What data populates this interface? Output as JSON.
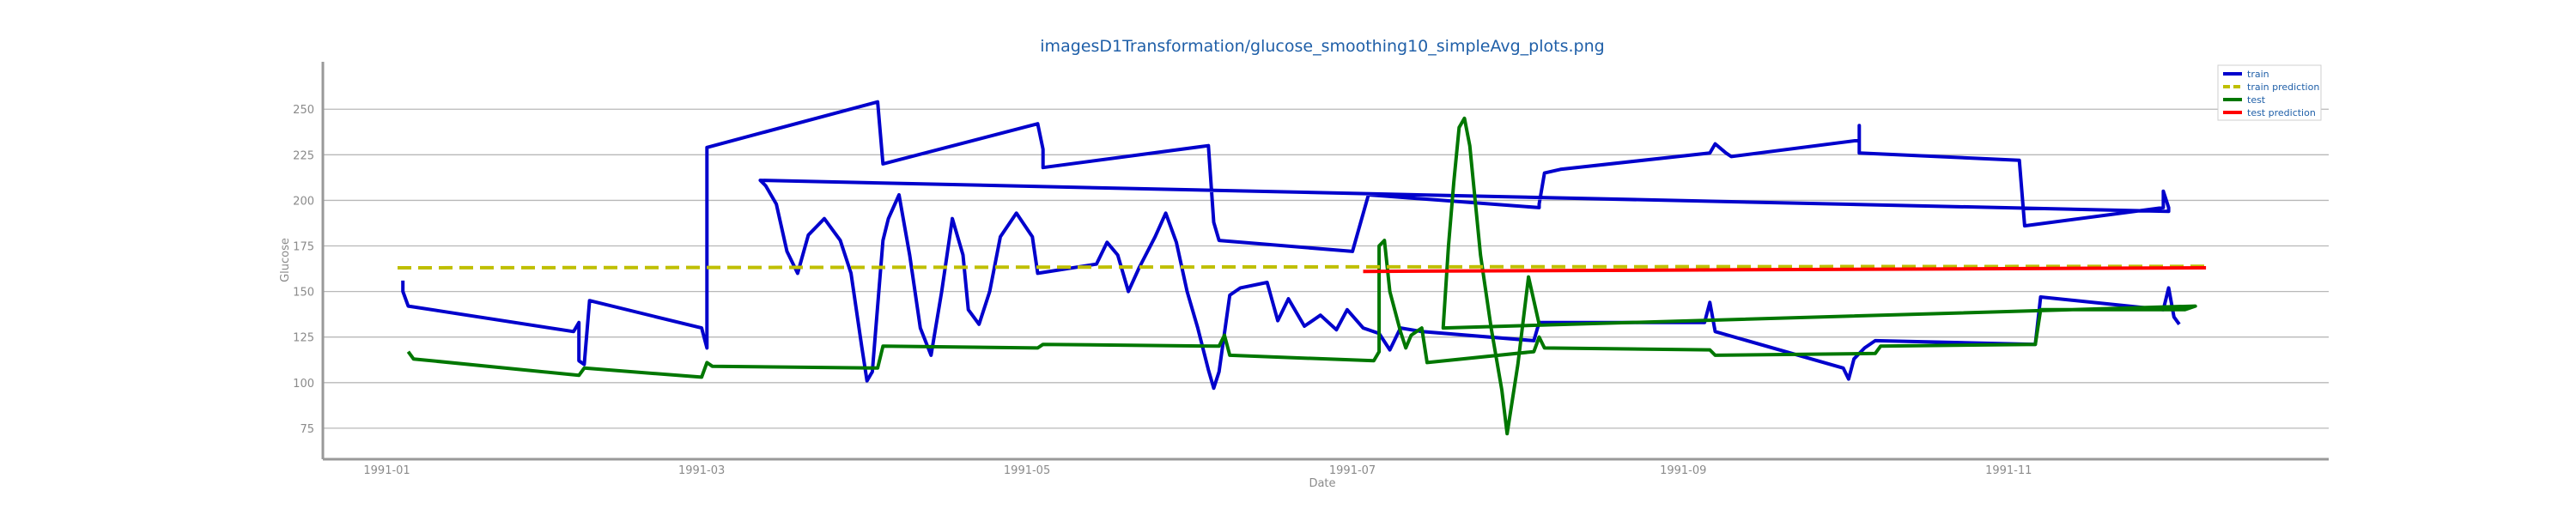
{
  "chart_data": {
    "type": "line",
    "title": "imagesD1Transformation/glucose_smoothing10_simpleAvg_plots.png",
    "xlabel": "Date",
    "ylabel": "Glucose",
    "x_ticks": [
      "1991-01",
      "1991-03",
      "1991-05",
      "1991-07",
      "1991-09",
      "1991-11"
    ],
    "y_ticks": [
      75,
      100,
      125,
      150,
      175,
      200,
      225,
      250
    ],
    "xlim": [
      "1990-12-20",
      "1991-12-31"
    ],
    "ylim": [
      58,
      276
    ],
    "grid": "horizontal",
    "legend_position": "top-right",
    "series": [
      {
        "name": "train",
        "color": "#0000cc",
        "points": [
          [
            "1991-01-04",
            156
          ],
          [
            "1991-01-04",
            150
          ],
          [
            "1991-01-05",
            142
          ],
          [
            "1991-02-05",
            128
          ],
          [
            "1991-02-06",
            133
          ],
          [
            "1991-02-06",
            112
          ],
          [
            "1991-02-07",
            110
          ],
          [
            "1991-02-08",
            145
          ],
          [
            "1991-03-01",
            130
          ],
          [
            "1991-03-02",
            119
          ],
          [
            "1991-03-02",
            208
          ],
          [
            "1991-03-02",
            229
          ],
          [
            "1991-04-03",
            254
          ],
          [
            "1991-04-04",
            220
          ],
          [
            "1991-05-03",
            242
          ],
          [
            "1991-05-04",
            228
          ],
          [
            "1991-05-04",
            218
          ],
          [
            "1991-06-04",
            230
          ],
          [
            "1991-06-05",
            188
          ],
          [
            "1991-06-06",
            178
          ],
          [
            "1991-07-01",
            172
          ],
          [
            "1991-07-04",
            203
          ],
          [
            "1991-08-05",
            196
          ],
          [
            "1991-08-05",
            198
          ],
          [
            "1991-08-06",
            215
          ],
          [
            "1991-08-09",
            217
          ],
          [
            "1991-09-06",
            226
          ],
          [
            "1991-09-07",
            231
          ],
          [
            "1991-09-09",
            226
          ],
          [
            "1991-09-10",
            224
          ],
          [
            "1991-10-04",
            233
          ],
          [
            "1991-10-04",
            241
          ],
          [
            "1991-10-04",
            226
          ],
          [
            "1991-11-03",
            222
          ],
          [
            "1991-11-04",
            186
          ],
          [
            "1991-11-30",
            196
          ],
          [
            "1991-11-30",
            205
          ],
          [
            "1991-12-01",
            196
          ],
          [
            "1991-12-01",
            194
          ],
          [
            "1991-03-12",
            211
          ],
          [
            "1991-03-13",
            208
          ],
          [
            "1991-03-15",
            198
          ],
          [
            "1991-03-17",
            172
          ],
          [
            "1991-03-19",
            160
          ],
          [
            "1991-03-21",
            181
          ],
          [
            "1991-03-24",
            190
          ],
          [
            "1991-03-27",
            178
          ],
          [
            "1991-03-29",
            160
          ],
          [
            "1991-03-31",
            120
          ],
          [
            "1991-04-01",
            101
          ],
          [
            "1991-04-02",
            106
          ],
          [
            "1991-04-04",
            178
          ],
          [
            "1991-04-05",
            190
          ],
          [
            "1991-04-07",
            203
          ],
          [
            "1991-04-09",
            170
          ],
          [
            "1991-04-11",
            130
          ],
          [
            "1991-04-13",
            115
          ],
          [
            "1991-04-15",
            150
          ],
          [
            "1991-04-17",
            190
          ],
          [
            "1991-04-19",
            170
          ],
          [
            "1991-04-20",
            140
          ],
          [
            "1991-04-22",
            132
          ],
          [
            "1991-04-24",
            150
          ],
          [
            "1991-04-26",
            180
          ],
          [
            "1991-04-29",
            193
          ],
          [
            "1991-05-02",
            180
          ],
          [
            "1991-05-03",
            160
          ],
          [
            "1991-05-14",
            165
          ],
          [
            "1991-05-16",
            177
          ],
          [
            "1991-05-18",
            170
          ],
          [
            "1991-05-20",
            150
          ],
          [
            "1991-05-22",
            163
          ],
          [
            "1991-05-25",
            180
          ],
          [
            "1991-05-27",
            193
          ],
          [
            "1991-05-29",
            177
          ],
          [
            "1991-05-31",
            150
          ],
          [
            "1991-06-02",
            130
          ],
          [
            "1991-06-04",
            107
          ],
          [
            "1991-06-05",
            97
          ],
          [
            "1991-06-06",
            106
          ],
          [
            "1991-06-08",
            148
          ],
          [
            "1991-06-10",
            152
          ],
          [
            "1991-06-15",
            155
          ],
          [
            "1991-06-17",
            134
          ],
          [
            "1991-06-19",
            146
          ],
          [
            "1991-06-22",
            131
          ],
          [
            "1991-06-25",
            137
          ],
          [
            "1991-06-28",
            129
          ],
          [
            "1991-06-30",
            140
          ],
          [
            "1991-07-03",
            130
          ],
          [
            "1991-07-06",
            127
          ],
          [
            "1991-07-08",
            118
          ],
          [
            "1991-07-10",
            130
          ],
          [
            "1991-07-14",
            128
          ],
          [
            "1991-08-04",
            123
          ],
          [
            "1991-08-05",
            133
          ],
          [
            "1991-09-05",
            133
          ],
          [
            "1991-09-06",
            144
          ],
          [
            "1991-09-07",
            128
          ],
          [
            "1991-10-01",
            108
          ],
          [
            "1991-10-02",
            102
          ],
          [
            "1991-10-03",
            113
          ],
          [
            "1991-10-05",
            119
          ],
          [
            "1991-10-07",
            123
          ],
          [
            "1991-11-06",
            121
          ],
          [
            "1991-11-07",
            147
          ],
          [
            "1991-11-30",
            140
          ],
          [
            "1991-12-01",
            152
          ],
          [
            "1991-12-02",
            136
          ],
          [
            "1991-12-03",
            132
          ]
        ]
      },
      {
        "name": "train prediction",
        "color": "#bfbf00",
        "dashed": true,
        "points": [
          [
            "1991-01-03",
            163
          ],
          [
            "1991-07-01",
            163.5
          ],
          [
            "1991-12-08",
            163.8
          ]
        ]
      },
      {
        "name": "test",
        "color": "#007700",
        "points": [
          [
            "1991-01-05",
            117
          ],
          [
            "1991-01-06",
            113
          ],
          [
            "1991-02-06",
            104
          ],
          [
            "1991-02-07",
            108
          ],
          [
            "1991-03-01",
            103
          ],
          [
            "1991-03-02",
            111
          ],
          [
            "1991-03-03",
            109
          ],
          [
            "1991-04-03",
            108
          ],
          [
            "1991-04-04",
            120
          ],
          [
            "1991-05-03",
            119
          ],
          [
            "1991-05-04",
            121
          ],
          [
            "1991-06-06",
            120
          ],
          [
            "1991-06-07",
            126
          ],
          [
            "1991-06-08",
            115
          ],
          [
            "1991-07-05",
            112
          ],
          [
            "1991-07-06",
            117
          ],
          [
            "1991-07-06",
            175
          ],
          [
            "1991-07-07",
            178
          ],
          [
            "1991-07-08",
            150
          ],
          [
            "1991-07-10",
            128
          ],
          [
            "1991-07-11",
            119
          ],
          [
            "1991-07-12",
            126
          ],
          [
            "1991-07-14",
            130
          ],
          [
            "1991-07-15",
            111
          ],
          [
            "1991-08-04",
            117
          ],
          [
            "1991-08-05",
            125
          ],
          [
            "1991-08-06",
            119
          ],
          [
            "1991-09-06",
            118
          ],
          [
            "1991-09-07",
            115
          ],
          [
            "1991-10-07",
            116
          ],
          [
            "1991-10-08",
            120
          ],
          [
            "1991-11-06",
            121
          ],
          [
            "1991-11-07",
            140
          ],
          [
            "1991-12-04",
            140
          ],
          [
            "1991-12-06",
            142
          ],
          [
            "1991-07-18",
            130
          ],
          [
            "1991-07-19",
            175
          ],
          [
            "1991-07-20",
            210
          ],
          [
            "1991-07-21",
            240
          ],
          [
            "1991-07-22",
            245
          ],
          [
            "1991-07-23",
            230
          ],
          [
            "1991-07-25",
            170
          ],
          [
            "1991-07-27",
            130
          ],
          [
            "1991-07-29",
            96
          ],
          [
            "1991-07-30",
            72
          ],
          [
            "1991-08-01",
            110
          ],
          [
            "1991-08-03",
            158
          ],
          [
            "1991-08-05",
            132
          ]
        ]
      },
      {
        "name": "test prediction",
        "color": "#ff0000",
        "points": [
          [
            "1991-07-03",
            161
          ],
          [
            "1991-12-08",
            163
          ]
        ]
      }
    ]
  }
}
